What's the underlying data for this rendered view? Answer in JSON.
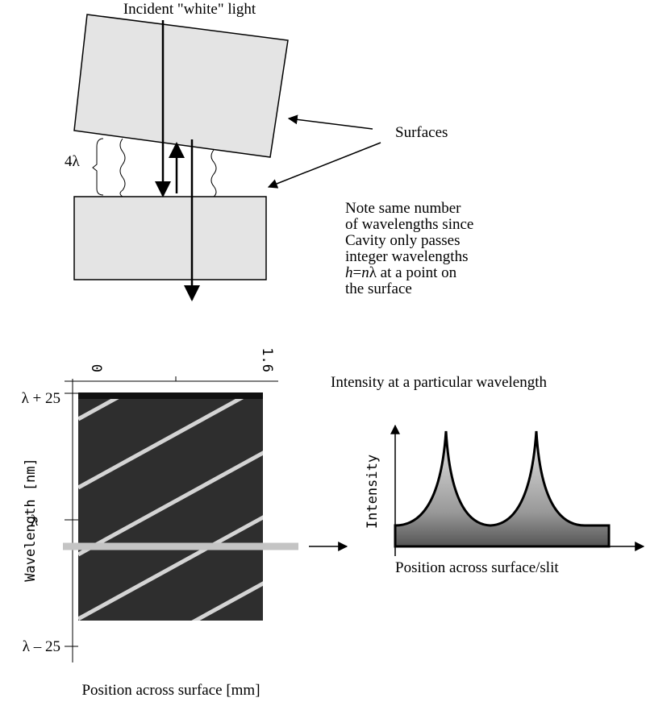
{
  "top": {
    "incident": "Incident \"white\" light",
    "surfaces": "Surfaces",
    "gap": "4λ",
    "note": {
      "lines": [
        "Note same number",
        "of wavelengths since",
        "Cavity only passes",
        "integer wavelengths"
      ],
      "formula": [
        "h",
        "=",
        "n",
        "λ at a point on"
      ],
      "last": "the surface"
    }
  },
  "spectrum": {
    "x_ticks": [
      "0",
      "1.6"
    ],
    "y_ticks": [
      "λ + 25",
      "λ",
      "λ – 25"
    ],
    "y_label": "Wavelength [nm]",
    "x_label": "Position across surface [mm]"
  },
  "profile": {
    "title": "Intensity at a particular wavelength",
    "y_label": "Intensity",
    "x_label": "Position across surface/slit"
  }
}
